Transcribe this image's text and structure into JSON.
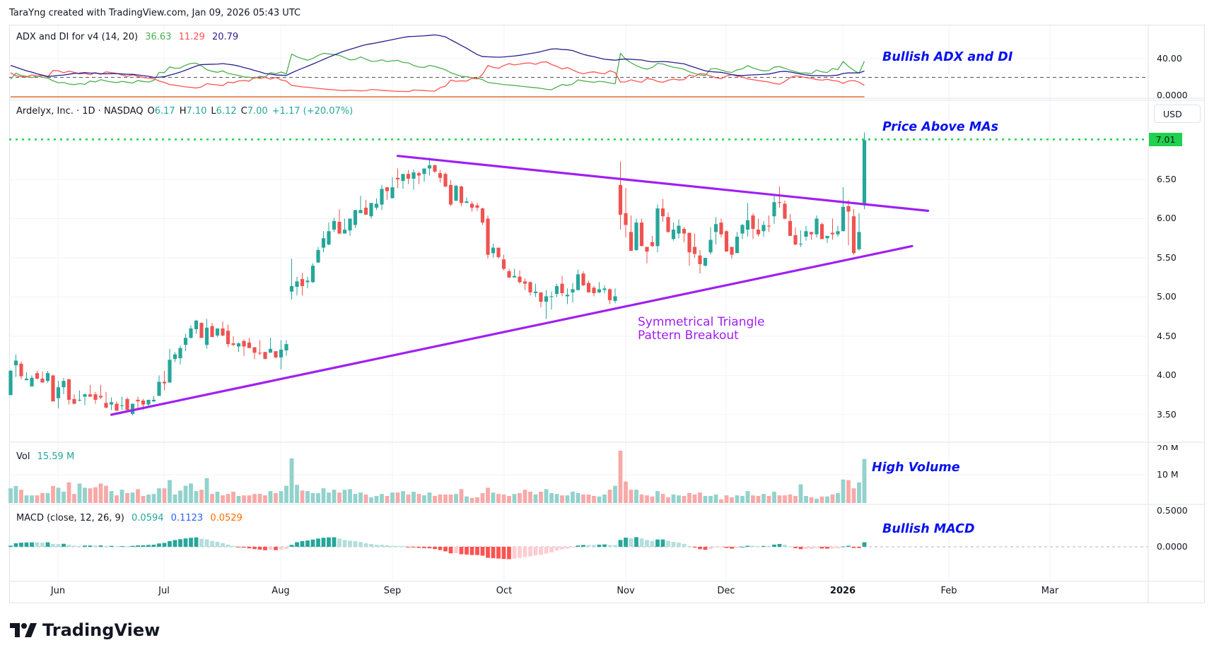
{
  "header": {
    "attribution": "TaraYng created with TradingView.com, Jan 09, 2026 05:43 UTC"
  },
  "adx_pane": {
    "label": "ADX and DI for v4 (14, 20)",
    "di_plus": "36.63",
    "di_minus": "11.29",
    "adx": "20.79",
    "threshold": 20,
    "axis": [
      "40.00",
      "0.0000"
    ],
    "annotation": "Bullish ADX and DI",
    "colors": {
      "di_plus": "#4caf50",
      "di_minus": "#ff5252",
      "adx": "#2a1f8f"
    }
  },
  "price_pane": {
    "symbol": "Ardelyx, Inc. · 1D · NASDAQ",
    "o_label": "O",
    "o": "6.17",
    "h_label": "H",
    "h": "7.10",
    "l_label": "L",
    "l": "6.12",
    "c_label": "C",
    "c": "7.00",
    "change": "+1.17 (+20.07%)",
    "currency": "USD",
    "last_price_label": "7.01",
    "last_price": 7.01,
    "axis": [
      "6.50",
      "6.00",
      "5.50",
      "5.00",
      "4.50",
      "4.00",
      "3.50"
    ],
    "annotation": "Price Above MAs",
    "pattern_line1": "Symmetrical Triangle",
    "pattern_line2": "Pattern Breakout",
    "colors": {
      "up": "#26a69a",
      "down": "#ef5350",
      "trendline": "#a020f0",
      "last_price": "#1fd14e"
    }
  },
  "volume_pane": {
    "label": "Vol",
    "value": "15.59 M",
    "axis": [
      "20 M",
      "10 M"
    ],
    "annotation": "High Volume"
  },
  "macd_pane": {
    "label": "MACD (close, 12, 26, 9)",
    "histogram": "0.0594",
    "macd": "0.1123",
    "signal": "0.0529",
    "axis": [
      "0.5000",
      "0.0000"
    ],
    "annotation": "Bullish MACD",
    "colors": {
      "macd": "#2962ff",
      "signal": "#ff6d00"
    }
  },
  "time_axis": [
    "Jun",
    "Jul",
    "Aug",
    "Sep",
    "Oct",
    "Nov",
    "Dec",
    "2026",
    "Feb",
    "Mar"
  ],
  "branding": "TradingView",
  "chart_data": {
    "type": "candlestick",
    "title": "Ardelyx, Inc. · 1D · NASDAQ",
    "ylim": [
      3.3,
      7.2
    ],
    "ohlc": [
      [
        3.75,
        4.07,
        3.75,
        4.06
      ],
      [
        4.13,
        4.27,
        3.98,
        4.19
      ],
      [
        4.15,
        4.18,
        3.95,
        3.99
      ],
      [
        3.94,
        4.04,
        3.94,
        3.96
      ],
      [
        3.86,
        4.0,
        3.86,
        3.97
      ],
      [
        4.03,
        4.06,
        3.95,
        3.96
      ],
      [
        3.96,
        4.05,
        3.91,
        3.91
      ],
      [
        3.93,
        4.06,
        3.91,
        4.03
      ],
      [
        4.0,
        4.01,
        3.67,
        3.67
      ],
      [
        3.71,
        3.93,
        3.58,
        3.85
      ],
      [
        3.85,
        3.97,
        3.76,
        3.93
      ],
      [
        3.95,
        3.96,
        3.63,
        3.69
      ],
      [
        3.7,
        3.76,
        3.63,
        3.64
      ],
      [
        3.68,
        3.81,
        3.67,
        3.69
      ],
      [
        3.73,
        3.77,
        3.62,
        3.76
      ],
      [
        3.76,
        3.88,
        3.73,
        3.73
      ],
      [
        3.76,
        3.79,
        3.64,
        3.69
      ],
      [
        3.74,
        3.88,
        3.7,
        3.72
      ],
      [
        3.65,
        3.79,
        3.58,
        3.59
      ],
      [
        3.63,
        3.72,
        3.56,
        3.66
      ],
      [
        3.64,
        3.67,
        3.55,
        3.55
      ],
      [
        3.61,
        3.73,
        3.56,
        3.62
      ],
      [
        3.7,
        3.72,
        3.56,
        3.56
      ],
      [
        3.51,
        3.64,
        3.49,
        3.64
      ],
      [
        3.69,
        3.73,
        3.56,
        3.67
      ],
      [
        3.68,
        3.7,
        3.56,
        3.63
      ],
      [
        3.63,
        3.69,
        3.6,
        3.69
      ],
      [
        3.67,
        3.74,
        3.66,
        3.69
      ],
      [
        3.74,
        4.0,
        3.74,
        3.92
      ],
      [
        3.92,
        4.06,
        3.81,
        3.9
      ],
      [
        3.91,
        4.34,
        3.91,
        4.2
      ],
      [
        4.21,
        4.3,
        4.17,
        4.27
      ],
      [
        4.22,
        4.38,
        4.14,
        4.35
      ],
      [
        4.39,
        4.53,
        4.31,
        4.48
      ],
      [
        4.48,
        4.64,
        4.47,
        4.6
      ],
      [
        4.59,
        4.71,
        4.53,
        4.7
      ],
      [
        4.67,
        4.68,
        4.48,
        4.48
      ],
      [
        4.39,
        4.72,
        4.34,
        4.61
      ],
      [
        4.63,
        4.67,
        4.49,
        4.49
      ],
      [
        4.51,
        4.6,
        4.49,
        4.6
      ],
      [
        4.6,
        4.69,
        4.5,
        4.51
      ],
      [
        4.57,
        4.65,
        4.36,
        4.4
      ],
      [
        4.41,
        4.5,
        4.37,
        4.39
      ],
      [
        4.37,
        4.42,
        4.3,
        4.41
      ],
      [
        4.44,
        4.46,
        4.25,
        4.37
      ],
      [
        4.42,
        4.48,
        4.35,
        4.35
      ],
      [
        4.36,
        4.36,
        4.21,
        4.29
      ],
      [
        4.29,
        4.45,
        4.26,
        4.28
      ],
      [
        4.3,
        4.3,
        4.21,
        4.21
      ],
      [
        4.29,
        4.48,
        4.29,
        4.34
      ],
      [
        4.31,
        4.31,
        4.22,
        4.23
      ],
      [
        4.23,
        4.45,
        4.08,
        4.33
      ],
      [
        4.32,
        4.45,
        4.25,
        4.4
      ],
      [
        5.07,
        5.49,
        4.97,
        5.14
      ],
      [
        5.13,
        5.26,
        5.02,
        5.2
      ],
      [
        5.23,
        5.31,
        5.02,
        5.14
      ],
      [
        5.19,
        5.26,
        5.11,
        5.21
      ],
      [
        5.19,
        5.43,
        5.18,
        5.4
      ],
      [
        5.44,
        5.64,
        5.44,
        5.6
      ],
      [
        5.63,
        5.84,
        5.57,
        5.75
      ],
      [
        5.67,
        5.95,
        5.66,
        5.84
      ],
      [
        5.86,
        6.01,
        5.83,
        5.97
      ],
      [
        5.96,
        6.12,
        5.8,
        5.81
      ],
      [
        5.81,
        6.0,
        5.81,
        5.86
      ],
      [
        5.85,
        6.0,
        5.78,
        6.0
      ],
      [
        5.92,
        6.11,
        5.88,
        6.11
      ],
      [
        6.07,
        6.29,
        6.07,
        6.11
      ],
      [
        6.14,
        6.24,
        6.05,
        6.05
      ],
      [
        6.03,
        6.2,
        6.0,
        6.2
      ],
      [
        6.14,
        6.26,
        6.11,
        6.19
      ],
      [
        6.18,
        6.43,
        6.11,
        6.38
      ],
      [
        6.4,
        6.4,
        6.24,
        6.35
      ],
      [
        6.26,
        6.53,
        6.26,
        6.4
      ],
      [
        6.52,
        6.64,
        6.39,
        6.5
      ],
      [
        6.48,
        6.57,
        6.38,
        6.57
      ],
      [
        6.57,
        6.62,
        6.44,
        6.51
      ],
      [
        6.51,
        6.63,
        6.37,
        6.59
      ],
      [
        6.58,
        6.6,
        6.44,
        6.55
      ],
      [
        6.57,
        6.64,
        6.47,
        6.64
      ],
      [
        6.64,
        6.78,
        6.55,
        6.68
      ],
      [
        6.68,
        6.69,
        6.58,
        6.6
      ],
      [
        6.58,
        6.62,
        6.46,
        6.52
      ],
      [
        6.57,
        6.59,
        6.4,
        6.41
      ],
      [
        6.43,
        6.49,
        6.16,
        6.18
      ],
      [
        6.23,
        6.43,
        6.22,
        6.42
      ],
      [
        6.41,
        6.42,
        6.16,
        6.2
      ],
      [
        6.2,
        6.27,
        6.2,
        6.22
      ],
      [
        6.19,
        6.22,
        6.09,
        6.14
      ],
      [
        6.17,
        6.2,
        6.1,
        6.14
      ],
      [
        6.13,
        6.14,
        5.92,
        5.95
      ],
      [
        6.0,
        6.04,
        5.49,
        5.54
      ],
      [
        5.56,
        5.68,
        5.5,
        5.63
      ],
      [
        5.63,
        5.63,
        5.49,
        5.51
      ],
      [
        5.48,
        5.54,
        5.34,
        5.36
      ],
      [
        5.33,
        5.36,
        5.24,
        5.25
      ],
      [
        5.25,
        5.36,
        5.25,
        5.27
      ],
      [
        5.26,
        5.34,
        5.17,
        5.19
      ],
      [
        5.2,
        5.24,
        5.09,
        5.17
      ],
      [
        5.19,
        5.2,
        5.02,
        5.06
      ],
      [
        5.05,
        5.17,
        5.0,
        5.07
      ],
      [
        5.06,
        5.06,
        4.87,
        4.94
      ],
      [
        4.94,
        5.09,
        4.72,
        5.01
      ],
      [
        5.0,
        5.07,
        4.84,
        5.01
      ],
      [
        5.04,
        5.17,
        5.0,
        5.14
      ],
      [
        5.17,
        5.27,
        5.01,
        5.05
      ],
      [
        5.01,
        5.11,
        4.91,
        5.03
      ],
      [
        5.06,
        5.18,
        4.93,
        5.1
      ],
      [
        5.09,
        5.35,
        5.08,
        5.29
      ],
      [
        5.3,
        5.33,
        5.14,
        5.15
      ],
      [
        5.18,
        5.21,
        5.06,
        5.06
      ],
      [
        5.12,
        5.14,
        5.01,
        5.05
      ],
      [
        5.06,
        5.19,
        5.05,
        5.1
      ],
      [
        5.09,
        5.15,
        5.05,
        5.11
      ],
      [
        5.1,
        5.11,
        4.91,
        4.96
      ],
      [
        4.95,
        5.11,
        4.92,
        5.01
      ],
      [
        6.43,
        6.73,
        5.86,
        6.05
      ],
      [
        6.07,
        6.39,
        5.76,
        5.92
      ],
      [
        5.83,
        6.04,
        5.59,
        5.59
      ],
      [
        5.6,
        6.0,
        5.59,
        5.95
      ],
      [
        5.95,
        6.0,
        5.65,
        5.65
      ],
      [
        5.64,
        5.64,
        5.43,
        5.58
      ],
      [
        5.7,
        5.78,
        5.64,
        5.65
      ],
      [
        5.65,
        6.18,
        5.57,
        6.13
      ],
      [
        6.13,
        6.25,
        5.96,
        6.03
      ],
      [
        6.02,
        6.08,
        5.82,
        5.83
      ],
      [
        5.74,
        5.95,
        5.72,
        5.86
      ],
      [
        5.81,
        5.99,
        5.75,
        5.91
      ],
      [
        5.87,
        5.89,
        5.7,
        5.81
      ],
      [
        5.82,
        5.82,
        5.4,
        5.57
      ],
      [
        5.64,
        5.81,
        5.5,
        5.55
      ],
      [
        5.53,
        5.6,
        5.3,
        5.42
      ],
      [
        5.4,
        5.5,
        5.39,
        5.5
      ],
      [
        5.57,
        5.89,
        5.54,
        5.73
      ],
      [
        5.83,
        6.02,
        5.67,
        5.93
      ],
      [
        5.95,
        6.0,
        5.76,
        5.8
      ],
      [
        5.84,
        5.85,
        5.58,
        5.58
      ],
      [
        5.64,
        5.64,
        5.49,
        5.54
      ],
      [
        5.56,
        5.83,
        5.56,
        5.77
      ],
      [
        5.81,
        5.93,
        5.74,
        5.92
      ],
      [
        5.86,
        6.2,
        5.77,
        5.98
      ],
      [
        6.04,
        6.07,
        5.74,
        5.87
      ],
      [
        5.86,
        6.0,
        5.77,
        5.8
      ],
      [
        5.84,
        5.97,
        5.77,
        5.92
      ],
      [
        5.91,
        6.04,
        5.83,
        5.9
      ],
      [
        6.03,
        6.3,
        5.93,
        6.21
      ],
      [
        6.21,
        6.41,
        6.14,
        6.2
      ],
      [
        6.19,
        6.23,
        5.99,
        6.0
      ],
      [
        5.97,
        6.06,
        5.78,
        5.78
      ],
      [
        5.79,
        5.89,
        5.66,
        5.67
      ],
      [
        5.68,
        5.85,
        5.64,
        5.68
      ],
      [
        5.77,
        5.91,
        5.72,
        5.84
      ],
      [
        5.83,
        5.83,
        5.73,
        5.8
      ],
      [
        5.8,
        6.04,
        5.76,
        6.0
      ],
      [
        5.93,
        5.95,
        5.74,
        5.74
      ],
      [
        5.75,
        5.78,
        5.69,
        5.78
      ],
      [
        5.82,
        6.0,
        5.73,
        5.8
      ],
      [
        5.8,
        5.91,
        5.77,
        5.84
      ],
      [
        5.84,
        6.4,
        5.84,
        6.15
      ],
      [
        6.16,
        6.24,
        5.66,
        6.09
      ],
      [
        6.03,
        6.12,
        5.54,
        5.56
      ],
      [
        5.61,
        6.07,
        5.59,
        5.83
      ],
      [
        6.17,
        7.1,
        6.12,
        7.0
      ]
    ],
    "volume_millions": [
      5.2,
      6.0,
      4.7,
      2.7,
      2.7,
      2.7,
      3.5,
      3.5,
      6.0,
      5.4,
      4.0,
      7.3,
      3.2,
      6.9,
      5.4,
      5.2,
      5.6,
      6.9,
      6.1,
      4.2,
      2.7,
      4.7,
      3.5,
      3.7,
      4.9,
      2.5,
      3.0,
      3.2,
      5.2,
      5.2,
      8.1,
      3.0,
      4.4,
      6.1,
      6.9,
      4.2,
      4.7,
      8.8,
      3.2,
      4.0,
      2.7,
      3.2,
      4.0,
      2.5,
      2.7,
      2.7,
      3.2,
      3.2,
      2.7,
      4.2,
      3.5,
      4.2,
      6.1,
      15.8,
      6.4,
      4.4,
      4.2,
      3.5,
      3.5,
      5.2,
      3.7,
      4.7,
      3.7,
      4.7,
      4.9,
      3.2,
      3.7,
      3.0,
      2.0,
      2.5,
      3.2,
      2.5,
      3.7,
      3.7,
      4.2,
      3.0,
      4.0,
      3.2,
      2.7,
      3.7,
      2.5,
      3.0,
      3.0,
      3.0,
      3.2,
      4.9,
      2.3,
      1.8,
      2.0,
      3.5,
      5.4,
      3.7,
      3.2,
      3.0,
      2.5,
      3.2,
      3.5,
      4.7,
      4.0,
      3.0,
      4.0,
      4.9,
      3.5,
      3.2,
      2.7,
      2.7,
      4.0,
      3.5,
      3.0,
      3.0,
      2.5,
      2.3,
      3.0,
      4.7,
      6.1,
      18.5,
      7.6,
      4.7,
      4.7,
      3.0,
      2.7,
      2.3,
      4.2,
      3.2,
      2.0,
      3.0,
      2.7,
      2.5,
      3.5,
      3.0,
      3.7,
      2.5,
      2.5,
      3.0,
      1.3,
      2.7,
      2.0,
      2.7,
      2.5,
      4.2,
      2.7,
      2.5,
      3.2,
      2.5,
      4.0,
      2.7,
      2.7,
      3.0,
      2.5,
      6.6,
      2.5,
      2.0,
      1.5,
      2.3,
      2.3,
      3.0,
      3.5,
      8.3,
      8.1,
      5.2,
      7.3,
      15.59
    ],
    "trendlines": {
      "upper": {
        "from_index": 73,
        "from_price": 6.8,
        "to_index": 173,
        "to_price": 6.1
      },
      "lower": {
        "from_index": 19,
        "from_price": 3.5,
        "to_index": 170,
        "to_price": 5.65
      }
    }
  }
}
